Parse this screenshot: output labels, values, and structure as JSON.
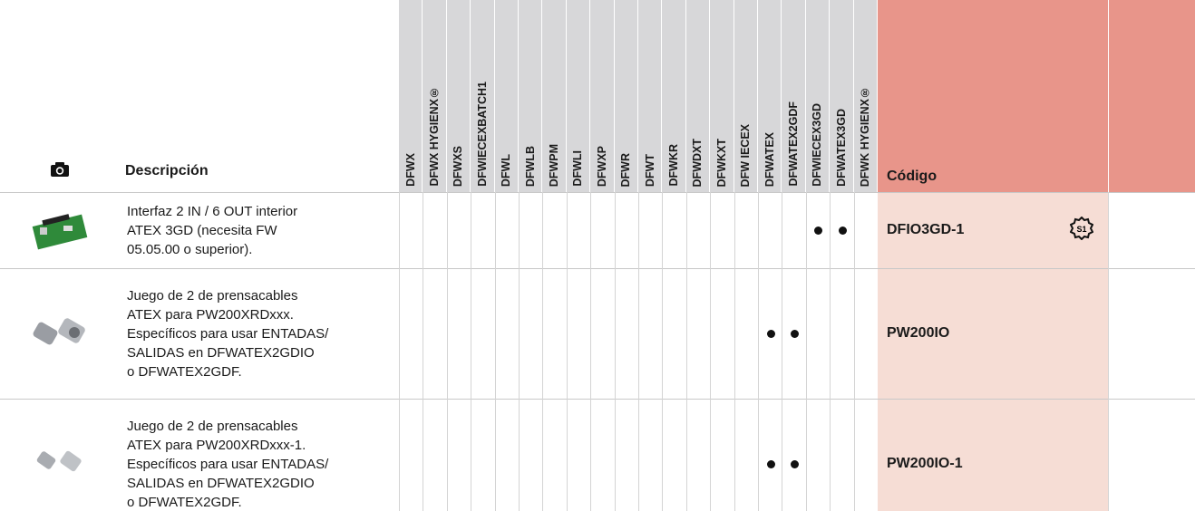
{
  "header": {
    "description": "Descripción",
    "code": "Código",
    "models": [
      "DFWX",
      "DFWX HYGIENX®",
      "DFWXS",
      "DFWIECEXBATCH1",
      "DFWL",
      "DFWLB",
      "DFWPM",
      "DFWLI",
      "DFWXP",
      "DFWR",
      "DFWT",
      "DFWKR",
      "DFWDXT",
      "DFWKXT",
      "DFW IECEX",
      "DFWATEX",
      "DFWATEX2GDF",
      "DFWIECEX3GD",
      "DFWATEX3GD",
      "DFWK HYGIENX®"
    ]
  },
  "table": {
    "rows": [
      {
        "description": [
          "Interfaz 2 IN / 6 OUT interior",
          "ATEX 3GD (necesita FW",
          "05.05.00 o superior)."
        ],
        "code": "DFIO3GD-1",
        "badge": "S1",
        "marks": [
          false,
          false,
          false,
          false,
          false,
          false,
          false,
          false,
          false,
          false,
          false,
          false,
          false,
          false,
          false,
          false,
          false,
          true,
          true,
          false
        ]
      },
      {
        "description": [
          "Juego de 2 de prensacables",
          "ATEX para PW200XRDxxx.",
          "Específicos para usar ENTADAS/",
          "SALIDAS en DFWATEX2GDIO",
          "o DFWATEX2GDF."
        ],
        "code": "PW200IO",
        "marks": [
          false,
          false,
          false,
          false,
          false,
          false,
          false,
          false,
          false,
          false,
          false,
          false,
          false,
          false,
          false,
          true,
          true,
          false,
          false,
          false
        ]
      },
      {
        "description": [
          "Juego de 2 de prensacables",
          "ATEX para PW200XRDxxx-1.",
          "Específicos para usar ENTADAS/",
          "SALIDAS en DFWATEX2GDIO",
          "o DFWATEX2GDF."
        ],
        "code": "PW200IO-1",
        "marks": [
          false,
          false,
          false,
          false,
          false,
          false,
          false,
          false,
          false,
          false,
          false,
          false,
          false,
          false,
          false,
          true,
          true,
          false,
          false,
          false
        ]
      }
    ]
  }
}
